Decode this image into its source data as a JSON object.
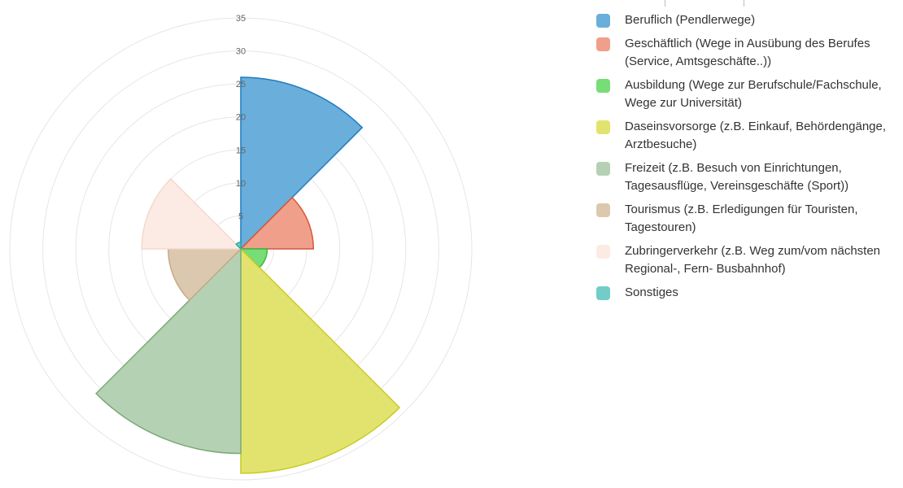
{
  "chart_data": {
    "type": "polarArea",
    "title": "",
    "r_ticks": [
      5,
      10,
      15,
      20,
      25,
      30,
      35
    ],
    "r_range": [
      0,
      35
    ],
    "grid": true,
    "legend_position": "right",
    "categories": [
      "Beruflich (Pendlerwege)",
      "Geschäftlich (Wege in Ausübung des Berufes (Service, Amtsgeschäfte..))",
      "Ausbildung (Wege zur Berufschule/Fachschule, Wege zur Universität)",
      "Daseinsvorsorge (z.B. Einkauf, Behördengänge, Arztbesuche)",
      "Freizeit (z.B. Besuch von Einrichtungen, Tagesausflüge, Vereinsgeschäfte (Sport))",
      "Tourismus (z.B. Erledigungen für Touristen, Tagestouren)",
      "Zubringerverkehr (z.B. Weg zum/vom nächsten Regional-, Fern- Busbahnhof)",
      "Sonstiges"
    ],
    "values": [
      26,
      11,
      4,
      34,
      31,
      11,
      15,
      1
    ],
    "colors": [
      "#6aaedb",
      "#f0a08a",
      "#77dd77",
      "#e2e36f",
      "#b5d1b3",
      "#dcc8ae",
      "#fcebe4",
      "#72cdc9"
    ],
    "borders": [
      "#1f7bbf",
      "#d9553a",
      "#3cb83c",
      "#c8cc22",
      "#7aaa78",
      "#c4aa88",
      "#f3d9cb",
      "#2aa8a2"
    ]
  }
}
